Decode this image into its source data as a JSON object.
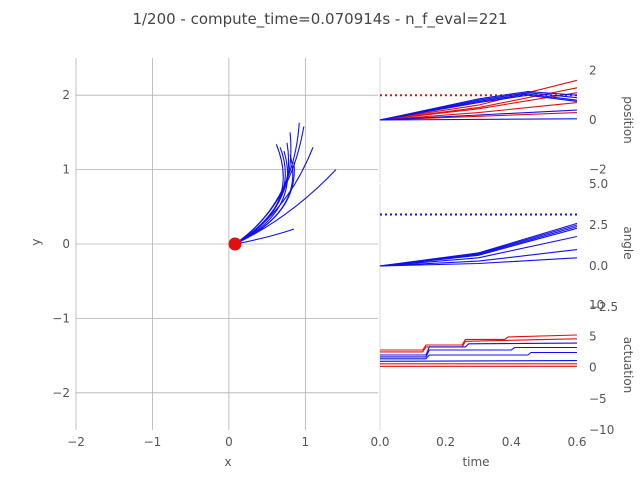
{
  "title": "1/200 - compute_time=0.070914s - n_f_eval=221",
  "colors": {
    "blue": "#1010ee",
    "red": "#e01010",
    "grid": "#b0b0b0"
  },
  "chart_data": [
    {
      "type": "line",
      "id": "trajectory",
      "xlabel": "x",
      "ylabel": "y",
      "xlim": [
        -2,
        1.95
      ],
      "ylim": [
        -2.5,
        2.5
      ],
      "grid": true,
      "xticks": [
        "−2",
        "−1",
        "0",
        "1"
      ],
      "yticks": [
        "2",
        "1",
        "0",
        "−1",
        "−2"
      ],
      "start_point": {
        "x": 0.08,
        "y": 0.0
      },
      "series": [
        {
          "color": "blue",
          "points": [
            [
              0.08,
              0
            ],
            [
              0.5,
              0.08
            ],
            [
              0.85,
              0.2
            ]
          ]
        },
        {
          "color": "blue",
          "points": [
            [
              0.08,
              0
            ],
            [
              0.8,
              0.35
            ],
            [
              1.4,
              1.0
            ]
          ]
        },
        {
          "color": "blue",
          "points": [
            [
              0.08,
              0
            ],
            [
              0.75,
              0.4
            ],
            [
              1.1,
              1.3
            ]
          ]
        },
        {
          "color": "blue",
          "points": [
            [
              0.08,
              0
            ],
            [
              0.8,
              0.5
            ],
            [
              0.98,
              1.58
            ]
          ]
        },
        {
          "color": "blue",
          "points": [
            [
              0.08,
              0
            ],
            [
              0.85,
              0.55
            ],
            [
              0.92,
              1.63
            ]
          ]
        },
        {
          "color": "blue",
          "points": [
            [
              0.08,
              0
            ],
            [
              0.9,
              0.45
            ],
            [
              0.8,
              1.5
            ]
          ]
        },
        {
          "color": "blue",
          "points": [
            [
              0.08,
              0
            ],
            [
              0.95,
              0.5
            ],
            [
              0.62,
              1.34
            ]
          ]
        },
        {
          "color": "blue",
          "points": [
            [
              0.08,
              0
            ],
            [
              0.95,
              0.55
            ],
            [
              0.67,
              1.3
            ]
          ]
        },
        {
          "color": "blue",
          "points": [
            [
              0.08,
              0
            ],
            [
              0.95,
              0.45
            ],
            [
              0.72,
              1.25
            ]
          ]
        },
        {
          "color": "blue",
          "points": [
            [
              0.08,
              0
            ],
            [
              0.9,
              0.5
            ],
            [
              0.76,
              1.36
            ]
          ]
        },
        {
          "color": "blue",
          "points": [
            [
              0.08,
              0
            ],
            [
              1.0,
              0.45
            ],
            [
              0.8,
              1.2
            ]
          ]
        },
        {
          "color": "blue",
          "points": [
            [
              0.08,
              0
            ],
            [
              0.92,
              0.4
            ],
            [
              0.85,
              1.1
            ]
          ]
        }
      ]
    },
    {
      "type": "line",
      "id": "position",
      "ylabel": "position",
      "xlim": [
        0,
        0.6
      ],
      "ylim": [
        -2.5,
        2.5
      ],
      "yticks": [
        "2",
        "0",
        "−2"
      ],
      "reference": {
        "color": "red",
        "style": "dotted",
        "value": 1.0
      },
      "series": [
        {
          "color": "red",
          "points": [
            [
              0,
              0
            ],
            [
              0.3,
              0.6
            ],
            [
              0.6,
              1.6
            ]
          ]
        },
        {
          "color": "red",
          "points": [
            [
              0,
              0
            ],
            [
              0.3,
              0.5
            ],
            [
              0.6,
              1.3
            ]
          ]
        },
        {
          "color": "red",
          "points": [
            [
              0,
              0
            ],
            [
              0.3,
              0.45
            ],
            [
              0.6,
              1.1
            ]
          ]
        },
        {
          "color": "red",
          "points": [
            [
              0,
              0
            ],
            [
              0.3,
              0.3
            ],
            [
              0.6,
              0.7
            ]
          ]
        },
        {
          "color": "red",
          "points": [
            [
              0,
              0
            ],
            [
              0.3,
              0.15
            ],
            [
              0.6,
              0.3
            ]
          ]
        },
        {
          "color": "blue",
          "points": [
            [
              0,
              0
            ],
            [
              0.3,
              0.75
            ],
            [
              0.45,
              1.05
            ],
            [
              0.6,
              0.8
            ]
          ]
        },
        {
          "color": "blue",
          "points": [
            [
              0,
              0
            ],
            [
              0.3,
              0.8
            ],
            [
              0.45,
              1.1
            ],
            [
              0.6,
              0.9
            ]
          ]
        },
        {
          "color": "blue",
          "points": [
            [
              0,
              0
            ],
            [
              0.3,
              0.85
            ],
            [
              0.45,
              1.15
            ],
            [
              0.6,
              1.0
            ]
          ]
        },
        {
          "color": "blue",
          "points": [
            [
              0,
              0
            ],
            [
              0.3,
              0.7
            ],
            [
              0.45,
              1.0
            ],
            [
              0.6,
              0.75
            ]
          ]
        },
        {
          "color": "blue",
          "points": [
            [
              0,
              0
            ],
            [
              0.3,
              0.2
            ],
            [
              0.6,
              0.4
            ]
          ]
        },
        {
          "color": "blue",
          "points": [
            [
              0,
              0
            ],
            [
              0.6,
              0.05
            ]
          ]
        }
      ]
    },
    {
      "type": "line",
      "id": "angle",
      "ylabel": "angle",
      "xlim": [
        0,
        0.6
      ],
      "ylim": [
        -2.5,
        5.0
      ],
      "yticks": [
        "5.0",
        "2.5",
        "0.0",
        "−2.5"
      ],
      "reference": {
        "color": "blue",
        "style": "dotted",
        "value": 3.14
      },
      "series": [
        {
          "color": "blue",
          "points": [
            [
              0,
              0
            ],
            [
              0.3,
              0.8
            ],
            [
              0.6,
              2.6
            ]
          ]
        },
        {
          "color": "blue",
          "points": [
            [
              0,
              0
            ],
            [
              0.3,
              0.75
            ],
            [
              0.6,
              2.5
            ]
          ]
        },
        {
          "color": "blue",
          "points": [
            [
              0,
              0
            ],
            [
              0.3,
              0.7
            ],
            [
              0.6,
              2.4
            ]
          ]
        },
        {
          "color": "blue",
          "points": [
            [
              0,
              0
            ],
            [
              0.3,
              0.65
            ],
            [
              0.6,
              2.3
            ]
          ]
        },
        {
          "color": "blue",
          "points": [
            [
              0,
              0
            ],
            [
              0.3,
              0.5
            ],
            [
              0.6,
              1.8
            ]
          ]
        },
        {
          "color": "blue",
          "points": [
            [
              0,
              0
            ],
            [
              0.3,
              0.3
            ],
            [
              0.6,
              1.0
            ]
          ]
        },
        {
          "color": "blue",
          "points": [
            [
              0,
              0
            ],
            [
              0.3,
              0.15
            ],
            [
              0.6,
              0.5
            ]
          ]
        }
      ]
    },
    {
      "type": "line",
      "id": "actuation",
      "xlabel": "time",
      "ylabel": "actuation",
      "xlim": [
        0,
        0.6
      ],
      "ylim": [
        -10,
        10
      ],
      "xticks": [
        "0.0",
        "0.2",
        "0.4",
        "0.6"
      ],
      "yticks": [
        "10",
        "5",
        "0",
        "−5",
        "−10"
      ],
      "series": [
        {
          "color": "red",
          "points": [
            [
              0,
              2.8
            ],
            [
              0.13,
              2.8
            ],
            [
              0.14,
              3.6
            ],
            [
              0.25,
              3.6
            ],
            [
              0.26,
              4.5
            ],
            [
              0.38,
              4.5
            ],
            [
              0.39,
              4.9
            ],
            [
              0.6,
              5.2
            ]
          ]
        },
        {
          "color": "red",
          "points": [
            [
              0,
              2.5
            ],
            [
              0.13,
              2.5
            ],
            [
              0.14,
              3.3
            ],
            [
              0.25,
              3.3
            ],
            [
              0.26,
              4.2
            ],
            [
              0.6,
              4.6
            ]
          ]
        },
        {
          "color": "blue",
          "points": [
            [
              0,
              2.0
            ],
            [
              0.14,
              2.0
            ],
            [
              0.15,
              3.3
            ],
            [
              0.26,
              3.3
            ],
            [
              0.27,
              3.8
            ],
            [
              0.6,
              3.9
            ]
          ]
        },
        {
          "color": "blue",
          "points": [
            [
              0,
              1.7
            ],
            [
              0.14,
              1.7
            ],
            [
              0.15,
              2.8
            ],
            [
              0.4,
              2.8
            ],
            [
              0.41,
              3.2
            ],
            [
              0.6,
              3.2
            ]
          ]
        },
        {
          "color": "blue",
          "points": [
            [
              0,
              1.4
            ],
            [
              0.14,
              1.4
            ],
            [
              0.15,
              2.0
            ],
            [
              0.45,
              2.0
            ],
            [
              0.46,
              2.4
            ],
            [
              0.6,
              2.4
            ]
          ]
        },
        {
          "color": "red",
          "points": [
            [
              0,
              0.6
            ],
            [
              0.6,
              0.6
            ]
          ]
        },
        {
          "color": "red",
          "points": [
            [
              0,
              0.2
            ],
            [
              0.6,
              0.2
            ]
          ]
        },
        {
          "color": "blue",
          "points": [
            [
              0,
              1.0
            ],
            [
              0.6,
              1.1
            ]
          ]
        }
      ]
    }
  ]
}
